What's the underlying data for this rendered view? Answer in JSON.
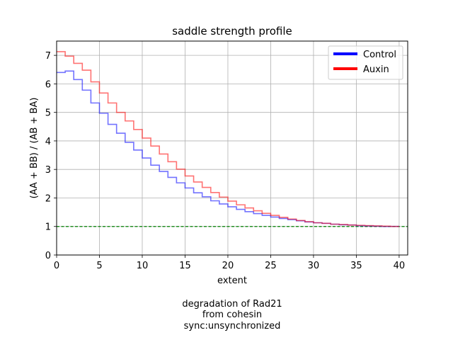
{
  "chart_data": {
    "type": "line",
    "title": "saddle strength profile",
    "xlabel": "extent",
    "ylabel": "(AA + BB) / (AB + BA)",
    "xlim": [
      0,
      41
    ],
    "ylim": [
      0,
      7.5
    ],
    "xticks": [
      0,
      5,
      10,
      15,
      20,
      25,
      30,
      35,
      40
    ],
    "yticks": [
      0,
      1,
      2,
      3,
      4,
      5,
      6,
      7
    ],
    "grid": true,
    "legend_position": "upper right",
    "reference_line": {
      "y": 1,
      "color": "#008000",
      "style": "dashed"
    },
    "step_x": [
      0,
      1,
      2,
      3,
      4,
      5,
      6,
      7,
      8,
      9,
      10,
      11,
      12,
      13,
      14,
      15,
      16,
      17,
      18,
      19,
      20,
      21,
      22,
      23,
      24,
      25,
      26,
      27,
      28,
      29,
      30,
      31,
      32,
      33,
      34,
      35,
      36,
      37,
      38,
      39
    ],
    "series": [
      {
        "name": "Control",
        "color": "#0000ff",
        "values": [
          6.4,
          6.45,
          6.15,
          5.78,
          5.33,
          4.97,
          4.58,
          4.27,
          3.95,
          3.68,
          3.4,
          3.15,
          2.93,
          2.72,
          2.53,
          2.35,
          2.18,
          2.04,
          1.9,
          1.79,
          1.69,
          1.6,
          1.52,
          1.45,
          1.39,
          1.33,
          1.28,
          1.24,
          1.2,
          1.16,
          1.13,
          1.11,
          1.08,
          1.06,
          1.05,
          1.03,
          1.02,
          1.01,
          1.0,
          1.0
        ]
      },
      {
        "name": "Auxin",
        "color": "#ff0000",
        "values": [
          7.13,
          6.97,
          6.72,
          6.48,
          6.07,
          5.68,
          5.33,
          5.0,
          4.7,
          4.4,
          4.1,
          3.82,
          3.54,
          3.27,
          3.01,
          2.77,
          2.56,
          2.37,
          2.19,
          2.03,
          1.89,
          1.76,
          1.65,
          1.55,
          1.46,
          1.39,
          1.32,
          1.26,
          1.21,
          1.17,
          1.13,
          1.11,
          1.08,
          1.07,
          1.05,
          1.04,
          1.03,
          1.02,
          1.01,
          1.0
        ]
      }
    ],
    "caption": [
      "degradation of Rad21",
      "from cohesin",
      "sync:unsynchronized"
    ]
  }
}
